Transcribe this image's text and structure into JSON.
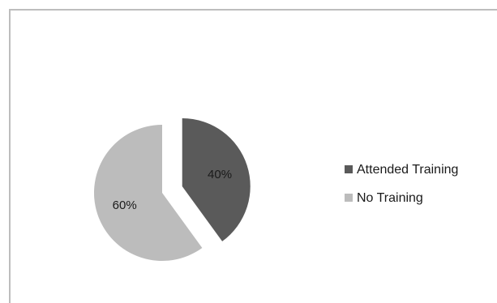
{
  "chart_data": {
    "type": "pie",
    "categories": [
      "Attended Training",
      "No Training"
    ],
    "values": [
      40,
      60
    ],
    "labels": [
      "40%",
      "60%"
    ],
    "colors": [
      "#5a5a5a",
      "#bcbcbc"
    ],
    "exploded": true,
    "legend_position": "right"
  }
}
